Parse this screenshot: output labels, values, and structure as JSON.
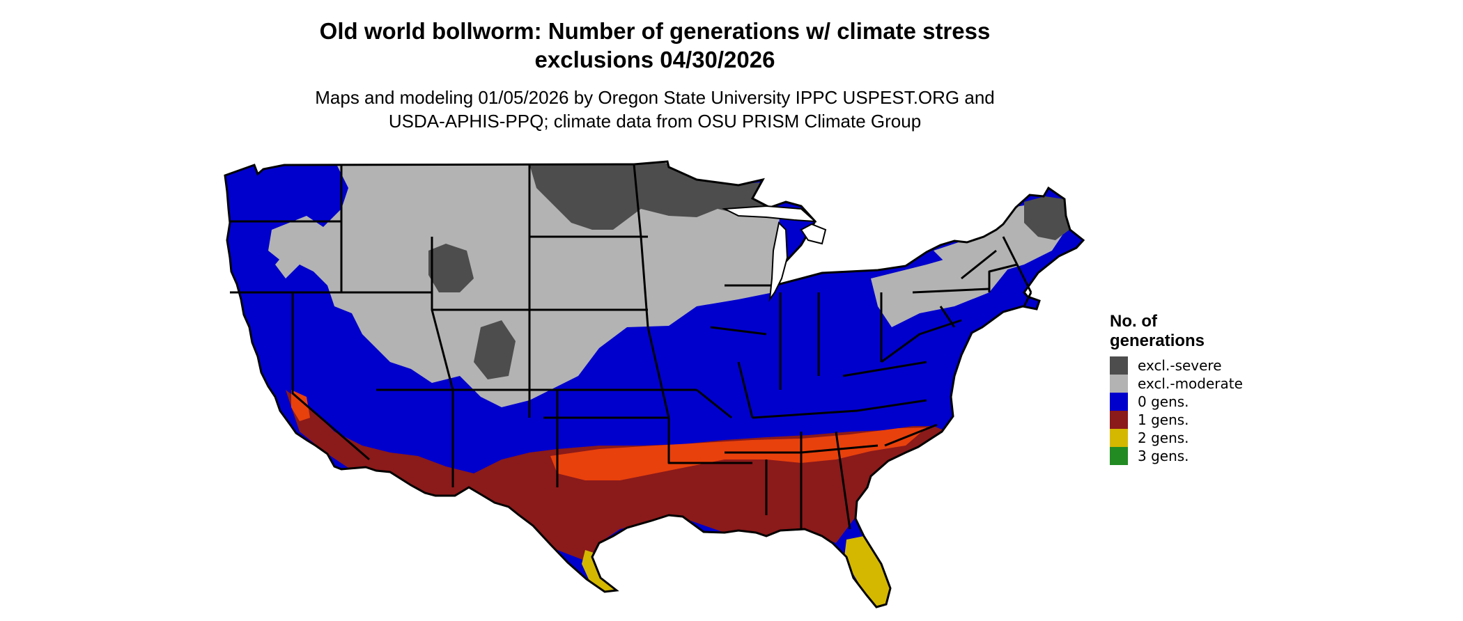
{
  "title_line1": "Old world bollworm: Number of generations w/ climate stress",
  "title_line2": "exclusions 04/30/2026",
  "subtitle_line1": "Maps and modeling 01/05/2026 by Oregon State University IPPC USPEST.ORG and",
  "subtitle_line2": "USDA-APHIS-PPQ; climate data from OSU PRISM Climate Group",
  "legend": {
    "title_line1": "No. of",
    "title_line2": "generations",
    "items": [
      {
        "label": "excl.-severe",
        "color": "#4d4d4d"
      },
      {
        "label": "excl.-moderate",
        "color": "#b3b3b3"
      },
      {
        "label": "0 gens.",
        "color": "#0000cd"
      },
      {
        "label": "1 gens.",
        "color": "#8b1a1a"
      },
      {
        "label": "2 gens.",
        "color": "#d4b800"
      },
      {
        "label": "3 gens.",
        "color": "#228b22"
      }
    ]
  },
  "map_colors": {
    "severe": "#4d4d4d",
    "moderate": "#b3b3b3",
    "zero": "#0000cd",
    "one": "#8b1a1a",
    "one_light": "#e8410c",
    "two": "#d4b800",
    "two_bright": "#f0e000",
    "border": "#000000",
    "water": "#ffffff"
  }
}
